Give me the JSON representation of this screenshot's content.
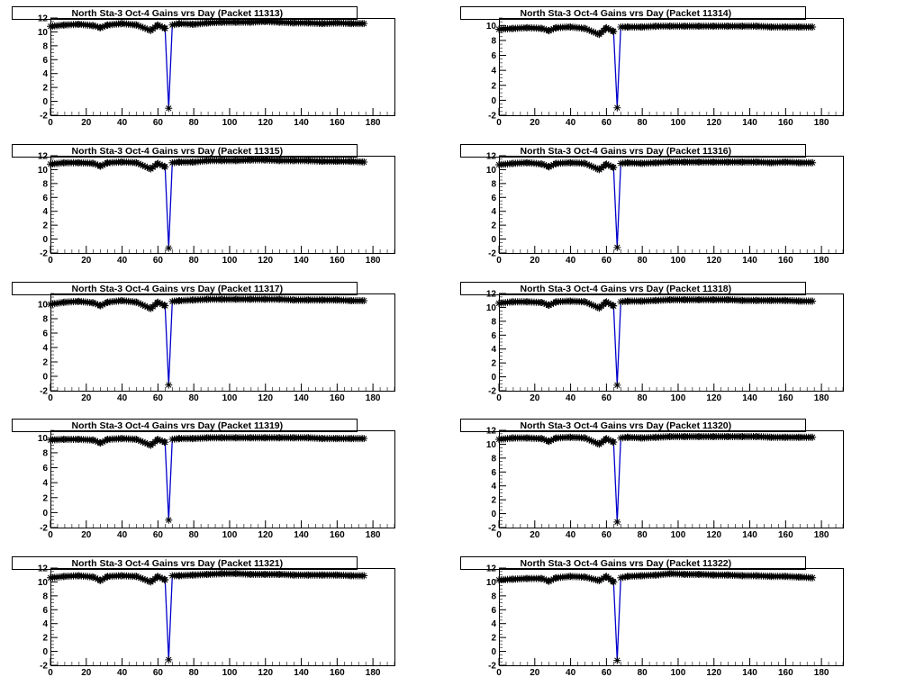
{
  "colors": {
    "line": "#0000cc",
    "marker": "#000000",
    "axis": "#000000",
    "background": "#ffffff"
  },
  "chart_data": [
    {
      "type": "line",
      "title": "North Sta-3 Oct-4 Gains vrs Day (Packet 11313)",
      "xlim": [
        0,
        192
      ],
      "ylim": [
        -2,
        12
      ],
      "xticks": [
        0,
        20,
        40,
        60,
        80,
        100,
        120,
        140,
        160,
        180
      ],
      "yticks": [
        -2,
        0,
        2,
        4,
        6,
        8,
        10,
        12
      ],
      "series": [
        {
          "x": [
            0,
            8,
            16,
            24,
            28,
            32,
            40,
            48,
            56,
            60,
            64,
            66,
            68,
            72,
            80,
            88,
            96,
            104,
            112,
            120,
            128,
            136,
            144,
            152,
            160,
            168,
            175
          ],
          "y": [
            10.8,
            11.0,
            11.1,
            10.9,
            10.6,
            11.0,
            11.2,
            11.0,
            10.2,
            11.0,
            10.5,
            -1.0,
            11.0,
            11.2,
            11.1,
            11.3,
            11.4,
            11.4,
            11.4,
            11.5,
            11.4,
            11.3,
            11.3,
            11.2,
            11.3,
            11.2,
            11.2
          ]
        }
      ]
    },
    {
      "type": "line",
      "title": "North Sta-3 Oct-4 Gains vrs Day (Packet 11314)",
      "xlim": [
        0,
        192
      ],
      "ylim": [
        -2,
        11
      ],
      "xticks": [
        0,
        20,
        40,
        60,
        80,
        100,
        120,
        140,
        160,
        180
      ],
      "yticks": [
        -2,
        0,
        2,
        4,
        6,
        8,
        10
      ],
      "series": [
        {
          "x": [
            0,
            8,
            16,
            24,
            28,
            32,
            40,
            48,
            56,
            60,
            64,
            66,
            68,
            72,
            80,
            88,
            96,
            104,
            112,
            120,
            128,
            136,
            144,
            152,
            160,
            168,
            175
          ],
          "y": [
            9.5,
            9.6,
            9.7,
            9.6,
            9.3,
            9.7,
            9.8,
            9.6,
            8.8,
            9.7,
            9.2,
            -1.0,
            9.8,
            9.8,
            9.8,
            9.9,
            9.9,
            9.9,
            9.9,
            9.9,
            9.9,
            9.9,
            9.9,
            9.8,
            9.8,
            9.8,
            9.8
          ]
        }
      ]
    },
    {
      "type": "line",
      "title": "North Sta-3 Oct-4 Gains vrs Day (Packet 11315)",
      "xlim": [
        0,
        192
      ],
      "ylim": [
        -2,
        12
      ],
      "xticks": [
        0,
        20,
        40,
        60,
        80,
        100,
        120,
        140,
        160,
        180
      ],
      "yticks": [
        -2,
        0,
        2,
        4,
        6,
        8,
        10,
        12
      ],
      "series": [
        {
          "x": [
            0,
            8,
            16,
            24,
            28,
            32,
            40,
            48,
            56,
            60,
            64,
            66,
            68,
            72,
            80,
            88,
            96,
            104,
            112,
            120,
            128,
            136,
            144,
            152,
            160,
            168,
            175
          ],
          "y": [
            10.8,
            11.0,
            11.0,
            10.9,
            10.5,
            11.0,
            11.1,
            11.0,
            10.1,
            10.9,
            10.4,
            -1.3,
            11.0,
            11.1,
            11.1,
            11.3,
            11.3,
            11.3,
            11.4,
            11.4,
            11.3,
            11.3,
            11.3,
            11.2,
            11.2,
            11.2,
            11.1
          ]
        }
      ]
    },
    {
      "type": "line",
      "title": "North Sta-3 Oct-4 Gains vrs Day (Packet 11316)",
      "xlim": [
        0,
        192
      ],
      "ylim": [
        -2,
        12
      ],
      "xticks": [
        0,
        20,
        40,
        60,
        80,
        100,
        120,
        140,
        160,
        180
      ],
      "yticks": [
        -2,
        0,
        2,
        4,
        6,
        8,
        10,
        12
      ],
      "series": [
        {
          "x": [
            0,
            8,
            16,
            24,
            28,
            32,
            40,
            48,
            56,
            60,
            64,
            66,
            68,
            72,
            80,
            88,
            96,
            104,
            112,
            120,
            128,
            136,
            144,
            152,
            160,
            168,
            175
          ],
          "y": [
            10.7,
            10.9,
            11.0,
            10.8,
            10.4,
            10.9,
            11.0,
            10.9,
            10.0,
            10.8,
            10.3,
            -1.2,
            10.9,
            11.0,
            10.9,
            11.0,
            11.1,
            11.1,
            11.1,
            11.1,
            11.1,
            11.1,
            11.1,
            11.0,
            11.1,
            11.0,
            11.0
          ]
        }
      ]
    },
    {
      "type": "line",
      "title": "North Sta-3 Oct-4 Gains vrs Day (Packet 11317)",
      "xlim": [
        0,
        192
      ],
      "ylim": [
        -2,
        11.5
      ],
      "xticks": [
        0,
        20,
        40,
        60,
        80,
        100,
        120,
        140,
        160,
        180
      ],
      "yticks": [
        -2,
        0,
        2,
        4,
        6,
        8,
        10
      ],
      "series": [
        {
          "x": [
            0,
            8,
            16,
            24,
            28,
            32,
            40,
            48,
            56,
            60,
            64,
            66,
            68,
            72,
            80,
            88,
            96,
            104,
            112,
            120,
            128,
            136,
            144,
            152,
            160,
            168,
            175
          ],
          "y": [
            10.0,
            10.3,
            10.4,
            10.2,
            9.8,
            10.3,
            10.5,
            10.3,
            9.4,
            10.3,
            9.8,
            -1.2,
            10.4,
            10.5,
            10.6,
            10.7,
            10.7,
            10.7,
            10.7,
            10.7,
            10.7,
            10.6,
            10.6,
            10.6,
            10.6,
            10.5,
            10.5
          ]
        }
      ]
    },
    {
      "type": "line",
      "title": "North Sta-3 Oct-4 Gains vrs Day (Packet 11318)",
      "xlim": [
        0,
        192
      ],
      "ylim": [
        -2,
        12
      ],
      "xticks": [
        0,
        20,
        40,
        60,
        80,
        100,
        120,
        140,
        160,
        180
      ],
      "yticks": [
        -2,
        0,
        2,
        4,
        6,
        8,
        10,
        12
      ],
      "series": [
        {
          "x": [
            0,
            8,
            16,
            24,
            28,
            32,
            40,
            48,
            56,
            60,
            64,
            66,
            68,
            72,
            80,
            88,
            96,
            104,
            112,
            120,
            128,
            136,
            144,
            152,
            160,
            168,
            175
          ],
          "y": [
            10.6,
            10.8,
            10.8,
            10.7,
            10.3,
            10.8,
            10.9,
            10.8,
            9.9,
            10.8,
            10.2,
            -1.2,
            10.8,
            10.9,
            10.9,
            11.0,
            11.1,
            11.1,
            11.1,
            11.1,
            11.1,
            11.0,
            11.0,
            11.0,
            11.0,
            10.9,
            10.9
          ]
        }
      ]
    },
    {
      "type": "line",
      "title": "North Sta-3 Oct-4 Gains vrs Day (Packet 11319)",
      "xlim": [
        0,
        192
      ],
      "ylim": [
        -2,
        11
      ],
      "xticks": [
        0,
        20,
        40,
        60,
        80,
        100,
        120,
        140,
        160,
        180
      ],
      "yticks": [
        -2,
        0,
        2,
        4,
        6,
        8,
        10
      ],
      "series": [
        {
          "x": [
            0,
            8,
            16,
            24,
            28,
            32,
            40,
            48,
            56,
            60,
            64,
            66,
            68,
            72,
            80,
            88,
            96,
            104,
            112,
            120,
            128,
            136,
            144,
            152,
            160,
            168,
            175
          ],
          "y": [
            9.7,
            9.8,
            9.8,
            9.7,
            9.3,
            9.8,
            9.9,
            9.8,
            9.0,
            9.8,
            9.4,
            -1.0,
            9.8,
            9.9,
            9.9,
            10.0,
            10.0,
            10.0,
            10.0,
            10.0,
            10.0,
            10.0,
            10.0,
            9.9,
            9.9,
            9.9,
            9.9
          ]
        }
      ]
    },
    {
      "type": "line",
      "title": "North Sta-3 Oct-4 Gains vrs Day (Packet 11320)",
      "xlim": [
        0,
        192
      ],
      "ylim": [
        -2,
        12
      ],
      "xticks": [
        0,
        20,
        40,
        60,
        80,
        100,
        120,
        140,
        160,
        180
      ],
      "yticks": [
        -2,
        0,
        2,
        4,
        6,
        8,
        10,
        12
      ],
      "series": [
        {
          "x": [
            0,
            8,
            16,
            24,
            28,
            32,
            40,
            48,
            56,
            60,
            64,
            66,
            68,
            72,
            80,
            88,
            96,
            104,
            112,
            120,
            128,
            136,
            144,
            152,
            160,
            168,
            175
          ],
          "y": [
            10.7,
            10.9,
            10.9,
            10.8,
            10.4,
            10.9,
            11.0,
            10.9,
            10.0,
            10.8,
            10.3,
            -1.2,
            10.9,
            11.0,
            10.9,
            11.0,
            11.1,
            11.1,
            11.1,
            11.1,
            11.1,
            11.1,
            11.1,
            11.0,
            11.0,
            11.0,
            11.0
          ]
        }
      ]
    },
    {
      "type": "line",
      "title": "North Sta-3 Oct-4 Gains vrs Day (Packet 11321)",
      "xlim": [
        0,
        192
      ],
      "ylim": [
        -2,
        12
      ],
      "xticks": [
        0,
        20,
        40,
        60,
        80,
        100,
        120,
        140,
        160,
        180
      ],
      "yticks": [
        -2,
        0,
        2,
        4,
        6,
        8,
        10,
        12
      ],
      "series": [
        {
          "x": [
            0,
            8,
            16,
            24,
            28,
            32,
            40,
            48,
            56,
            60,
            64,
            66,
            68,
            72,
            80,
            88,
            96,
            104,
            112,
            120,
            128,
            136,
            144,
            152,
            160,
            168,
            175
          ],
          "y": [
            10.6,
            10.8,
            10.9,
            10.7,
            10.2,
            10.8,
            10.9,
            10.8,
            10.0,
            10.8,
            10.3,
            -1.2,
            10.9,
            10.9,
            11.0,
            11.1,
            11.2,
            11.2,
            11.1,
            11.1,
            11.1,
            11.0,
            11.0,
            11.0,
            11.0,
            10.9,
            10.9
          ]
        }
      ]
    },
    {
      "type": "line",
      "title": "North Sta-3 Oct-4 Gains vrs Day (Packet 11322)",
      "xlim": [
        0,
        192
      ],
      "ylim": [
        -2,
        12
      ],
      "xticks": [
        0,
        20,
        40,
        60,
        80,
        100,
        120,
        140,
        160,
        180
      ],
      "yticks": [
        -2,
        0,
        2,
        4,
        6,
        8,
        10,
        12
      ],
      "series": [
        {
          "x": [
            0,
            8,
            16,
            24,
            28,
            32,
            40,
            48,
            56,
            60,
            64,
            66,
            68,
            72,
            80,
            88,
            96,
            104,
            112,
            120,
            128,
            136,
            144,
            152,
            160,
            168,
            175
          ],
          "y": [
            10.3,
            10.4,
            10.5,
            10.5,
            10.1,
            10.6,
            10.8,
            10.7,
            10.2,
            10.8,
            10.0,
            -1.3,
            10.6,
            10.8,
            10.9,
            11.0,
            11.2,
            11.1,
            11.1,
            11.0,
            11.0,
            10.9,
            10.9,
            10.8,
            10.8,
            10.7,
            10.6
          ]
        }
      ]
    }
  ]
}
